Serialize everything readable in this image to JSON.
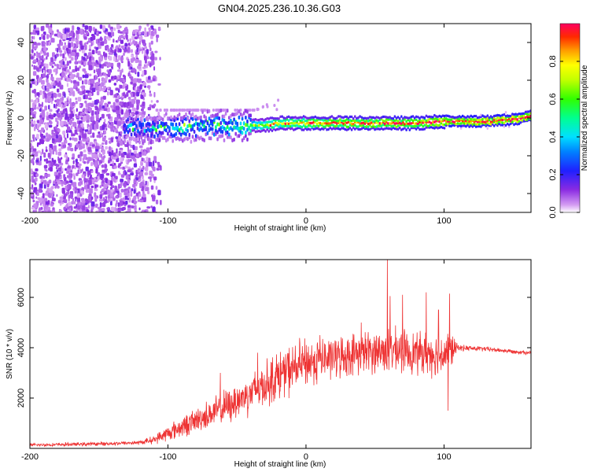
{
  "figure": {
    "title": "GN04.2025.236.10.36.G03"
  },
  "chart_data": [
    {
      "type": "heatmap",
      "title": "GN04.2025.236.10.36.G03",
      "xlabel": "Height of straight line (km)",
      "ylabel": "Frequency (Hz)",
      "xlim": [
        -200,
        163
      ],
      "ylim": [
        -50,
        50
      ],
      "xticks": [
        -200,
        -100,
        0,
        100
      ],
      "yticks": [
        -40,
        -20,
        0,
        20,
        40
      ],
      "colorbar": {
        "label": "Normalized spectral amplitude",
        "range": [
          0,
          1
        ],
        "ticks": [
          0.0,
          0.2,
          0.4,
          0.6,
          0.8
        ]
      },
      "ridge": [
        {
          "x": -130,
          "freq": -4,
          "amp": 0.3
        },
        {
          "x": -110,
          "freq": -4,
          "amp": 0.35
        },
        {
          "x": -90,
          "freq": -4,
          "amp": 0.38
        },
        {
          "x": -70,
          "freq": -3,
          "amp": 0.4
        },
        {
          "x": -50,
          "freq": -3,
          "amp": 0.45
        },
        {
          "x": -40,
          "freq": -3,
          "amp": 0.55
        },
        {
          "x": -30,
          "freq": -3,
          "amp": 0.65
        },
        {
          "x": -20,
          "freq": -2,
          "amp": 0.75
        },
        {
          "x": 0,
          "freq": -2,
          "amp": 0.8
        },
        {
          "x": 20,
          "freq": -2,
          "amp": 0.85
        },
        {
          "x": 40,
          "freq": -2,
          "amp": 0.85
        },
        {
          "x": 60,
          "freq": -2,
          "amp": 0.88
        },
        {
          "x": 80,
          "freq": -2,
          "amp": 0.9
        },
        {
          "x": 100,
          "freq": -1,
          "amp": 0.95
        },
        {
          "x": 130,
          "freq": -1,
          "amp": 1.0
        },
        {
          "x": 150,
          "freq": 0,
          "amp": 1.0
        },
        {
          "x": 163,
          "freq": 2,
          "amp": 0.95
        }
      ]
    },
    {
      "type": "line",
      "xlabel": "Height of straight line (km)",
      "ylabel": "SNR (10 * v/v)",
      "xlim": [
        -200,
        163
      ],
      "ylim": [
        0,
        7500
      ],
      "xticks": [
        -200,
        -100,
        0,
        100
      ],
      "yticks": [
        2000,
        4000,
        6000
      ],
      "color": "#ee3333",
      "series": [
        {
          "name": "SNR",
          "x": [
            -200,
            -150,
            -120,
            -110,
            -100,
            -80,
            -60,
            -40,
            -20,
            0,
            20,
            40,
            60,
            80,
            100,
            105,
            110,
            130,
            150,
            163
          ],
          "mean": [
            130,
            180,
            230,
            350,
            600,
            1100,
            1600,
            2200,
            2900,
            3400,
            3600,
            3800,
            3900,
            3800,
            3750,
            3900,
            4000,
            3950,
            3850,
            3800
          ],
          "spread": [
            80,
            90,
            100,
            200,
            400,
            600,
            800,
            1000,
            1200,
            1200,
            1000,
            1000,
            1100,
            1000,
            1100,
            900,
            150,
            120,
            100,
            100
          ]
        }
      ],
      "spikes": [
        {
          "x": 59,
          "y": 7500
        },
        {
          "x": 61,
          "y": 6050
        },
        {
          "x": 70,
          "y": 6100
        },
        {
          "x": 87,
          "y": 6200
        },
        {
          "x": 104,
          "y": 6150
        },
        {
          "x": 96,
          "y": 5500
        },
        {
          "x": 40,
          "y": 5000
        },
        {
          "x": 10,
          "y": 4500
        },
        {
          "x": -35,
          "y": 3800
        },
        {
          "x": -62,
          "y": 3000
        },
        {
          "x": 103,
          "y": 1500
        },
        {
          "x": -55,
          "y": 1200
        }
      ]
    }
  ]
}
